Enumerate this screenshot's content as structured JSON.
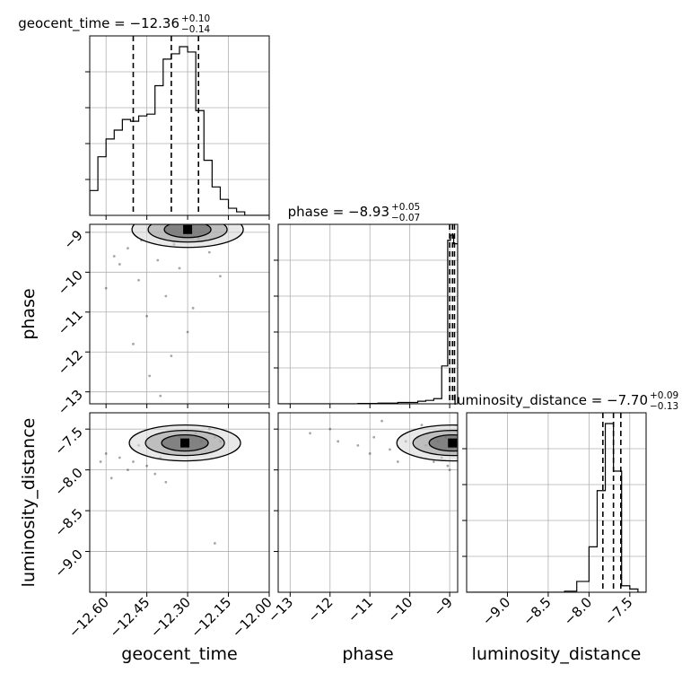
{
  "chart_data": {
    "type": "corner",
    "parameters": [
      "geocent_time",
      "phase",
      "luminosity_distance"
    ],
    "grid": true,
    "quantile_lines": "dashed",
    "diagonal": [
      {
        "parameter": "geocent_time",
        "title": "geocent_time = −12.36",
        "title_sup": "+0.10",
        "title_sub": "−0.14",
        "median": -12.36,
        "plus": 0.1,
        "minus": 0.14,
        "range": [
          -12.66,
          -12.0
        ],
        "ticks": [
          -12.6,
          -12.45,
          -12.3,
          -12.15,
          -12.0
        ],
        "tick_labels": [
          "−12.60",
          "−12.45",
          "−12.30",
          "−12.15",
          "−12.00"
        ],
        "hist_edges": [
          -12.66,
          -12.63,
          -12.6,
          -12.57,
          -12.54,
          -12.51,
          -12.48,
          -12.45,
          -12.42,
          -12.39,
          -12.36,
          -12.33,
          -12.3,
          -12.27,
          -12.24,
          -12.21,
          -12.18,
          -12.15,
          -12.12,
          -12.09,
          -12.06,
          -12.03,
          -12.0
        ],
        "hist_counts": [
          0.14,
          0.33,
          0.43,
          0.48,
          0.54,
          0.53,
          0.56,
          0.57,
          0.73,
          0.88,
          0.91,
          0.95,
          0.92,
          0.59,
          0.31,
          0.16,
          0.09,
          0.04,
          0.02,
          0.0,
          0.0,
          0.0
        ]
      },
      {
        "parameter": "phase",
        "title": "phase = −8.93",
        "title_sup": "+0.05",
        "title_sub": "−0.07",
        "median": -8.93,
        "plus": 0.05,
        "minus": 0.07,
        "range": [
          -13.3,
          -8.8
        ],
        "ticks": [
          -13,
          -12,
          -11,
          -10,
          -9
        ],
        "tick_labels": [
          "−13",
          "−12",
          "−11",
          "−10",
          "−9"
        ],
        "hist_edges": [
          -13.3,
          -12.8,
          -12.3,
          -11.8,
          -11.3,
          -10.8,
          -10.3,
          -9.8,
          -9.6,
          -9.4,
          -9.2,
          -9.05,
          -8.98,
          -8.9,
          -8.8
        ],
        "hist_counts": [
          0.0,
          0.0,
          0.0,
          0.0,
          0.002,
          0.004,
          0.008,
          0.015,
          0.02,
          0.03,
          0.22,
          0.95,
          0.98,
          0.93
        ]
      },
      {
        "parameter": "luminosity_distance",
        "title": "luminosity_distance = −7.70",
        "title_sup": "+0.09",
        "title_sub": "−0.13",
        "median": -7.7,
        "plus": 0.09,
        "minus": 0.13,
        "range": [
          -9.5,
          -7.3
        ],
        "ticks": [
          -9.0,
          -8.5,
          -8.0,
          -7.5
        ],
        "tick_labels": [
          "−9.0",
          "−8.5",
          "−8.0",
          "−7.5"
        ],
        "hist_edges": [
          -9.5,
          -9.35,
          -9.2,
          -9.05,
          -8.9,
          -8.75,
          -8.6,
          -8.45,
          -8.3,
          -8.15,
          -8.0,
          -7.9,
          -7.8,
          -7.7,
          -7.6,
          -7.5,
          -7.4,
          -7.3
        ],
        "hist_counts": [
          0.0,
          0.0,
          0.0,
          0.0,
          0.0,
          0.0,
          0.0,
          0.0,
          0.005,
          0.05,
          0.21,
          0.47,
          0.78,
          0.56,
          0.03,
          0.015,
          0.0
        ]
      }
    ],
    "off_diagonal": [
      {
        "x": "geocent_time",
        "y": "phase",
        "yrange": [
          -13.3,
          -8.8
        ],
        "yticks": [
          -13,
          -12,
          -11,
          -10,
          -9
        ],
        "ytick_labels": [
          "−13",
          "−12",
          "−11",
          "−10",
          "−9"
        ],
        "density_peak": [
          -12.3,
          -8.93
        ],
        "points": [
          [
            -12.52,
            -9.4
          ],
          [
            -12.41,
            -9.7
          ],
          [
            -12.33,
            -9.9
          ],
          [
            -12.48,
            -10.2
          ],
          [
            -12.38,
            -10.6
          ],
          [
            -12.45,
            -11.1
          ],
          [
            -12.3,
            -11.5
          ],
          [
            -12.55,
            -9.8
          ],
          [
            -12.22,
            -9.5
          ],
          [
            -12.36,
            -12.1
          ],
          [
            -12.44,
            -12.6
          ],
          [
            -12.28,
            -10.9
          ],
          [
            -12.6,
            -10.4
          ],
          [
            -12.4,
            -13.1
          ],
          [
            -12.5,
            -11.8
          ],
          [
            -12.18,
            -10.1
          ],
          [
            -12.47,
            -9.2
          ],
          [
            -12.35,
            -9.3
          ],
          [
            -12.26,
            -9.15
          ],
          [
            -12.57,
            -9.6
          ]
        ]
      },
      {
        "x": "geocent_time",
        "y": "luminosity_distance",
        "yrange": [
          -9.5,
          -7.3
        ],
        "yticks": [
          -9.0,
          -8.5,
          -8.0,
          -7.5
        ],
        "ytick_labels": [
          "−9.0",
          "−8.5",
          "−8.0",
          "−7.5"
        ],
        "density_peak": [
          -12.31,
          -7.67
        ],
        "points": [
          [
            -12.6,
            -7.8
          ],
          [
            -12.55,
            -7.85
          ],
          [
            -12.5,
            -7.9
          ],
          [
            -12.45,
            -7.95
          ],
          [
            -12.4,
            -7.85
          ],
          [
            -12.35,
            -7.75
          ],
          [
            -12.3,
            -7.7
          ],
          [
            -12.25,
            -7.65
          ],
          [
            -12.2,
            -7.6
          ],
          [
            -12.62,
            -7.9
          ],
          [
            -12.52,
            -8.0
          ],
          [
            -12.48,
            -7.7
          ],
          [
            -12.42,
            -8.05
          ],
          [
            -12.33,
            -7.6
          ],
          [
            -12.27,
            -7.55
          ],
          [
            -12.22,
            -7.5
          ],
          [
            -12.18,
            -7.65
          ],
          [
            -12.58,
            -8.1
          ],
          [
            -12.38,
            -8.15
          ],
          [
            -12.2,
            -8.9
          ]
        ]
      },
      {
        "x": "phase",
        "y": "luminosity_distance",
        "density_peak": [
          -8.93,
          -7.67
        ],
        "points": [
          [
            -9.0,
            -7.7
          ],
          [
            -9.1,
            -7.6
          ],
          [
            -9.3,
            -7.65
          ],
          [
            -9.6,
            -7.7
          ],
          [
            -9.8,
            -7.6
          ],
          [
            -10.1,
            -7.65
          ],
          [
            -10.5,
            -7.75
          ],
          [
            -10.9,
            -7.6
          ],
          [
            -11.3,
            -7.7
          ],
          [
            -9.2,
            -7.85
          ],
          [
            -9.4,
            -7.9
          ],
          [
            -9.0,
            -8.0
          ],
          [
            -9.05,
            -7.95
          ],
          [
            -12.5,
            -7.55
          ],
          [
            -11.8,
            -7.65
          ],
          [
            -10.3,
            -7.9
          ],
          [
            -9.7,
            -7.45
          ],
          [
            -10.7,
            -7.4
          ],
          [
            -11.0,
            -7.8
          ],
          [
            -12.0,
            -7.5
          ]
        ]
      }
    ],
    "xlabels": [
      "geocent_time",
      "phase",
      "luminosity_distance"
    ],
    "ylabels": [
      "",
      "phase",
      "luminosity_distance"
    ]
  }
}
